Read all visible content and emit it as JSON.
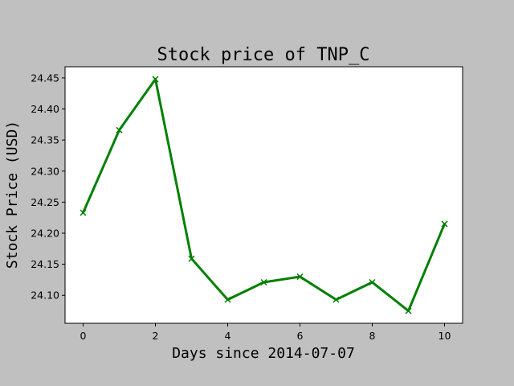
{
  "chart_data": {
    "type": "line",
    "title": "Stock price of TNP_C",
    "xlabel": "Days since 2014-07-07",
    "ylabel": "Stock Price (USD)",
    "x": [
      0,
      1,
      2,
      3,
      4,
      5,
      6,
      7,
      8,
      9,
      10
    ],
    "series": [
      {
        "values": [
          24.233,
          24.366,
          24.448,
          24.159,
          24.093,
          24.121,
          24.13,
          24.093,
          24.121,
          24.075,
          24.215
        ],
        "color": "#008000",
        "marker": "x"
      }
    ],
    "xlim": [
      -0.5,
      10.5
    ],
    "ylim": [
      24.055,
      24.468
    ],
    "xticks": [
      0,
      2,
      4,
      6,
      8,
      10
    ],
    "xtick_labels": [
      "0",
      "2",
      "4",
      "6",
      "8",
      "10"
    ],
    "yticks": [
      24.1,
      24.15,
      24.2,
      24.25,
      24.3,
      24.35,
      24.4,
      24.45
    ],
    "ytick_labels": [
      "24.10",
      "24.15",
      "24.20",
      "24.25",
      "24.30",
      "24.35",
      "24.40",
      "24.45"
    ],
    "grid": false,
    "background_color": "#c0c0c0",
    "plot_background_color": "#ffffff"
  }
}
